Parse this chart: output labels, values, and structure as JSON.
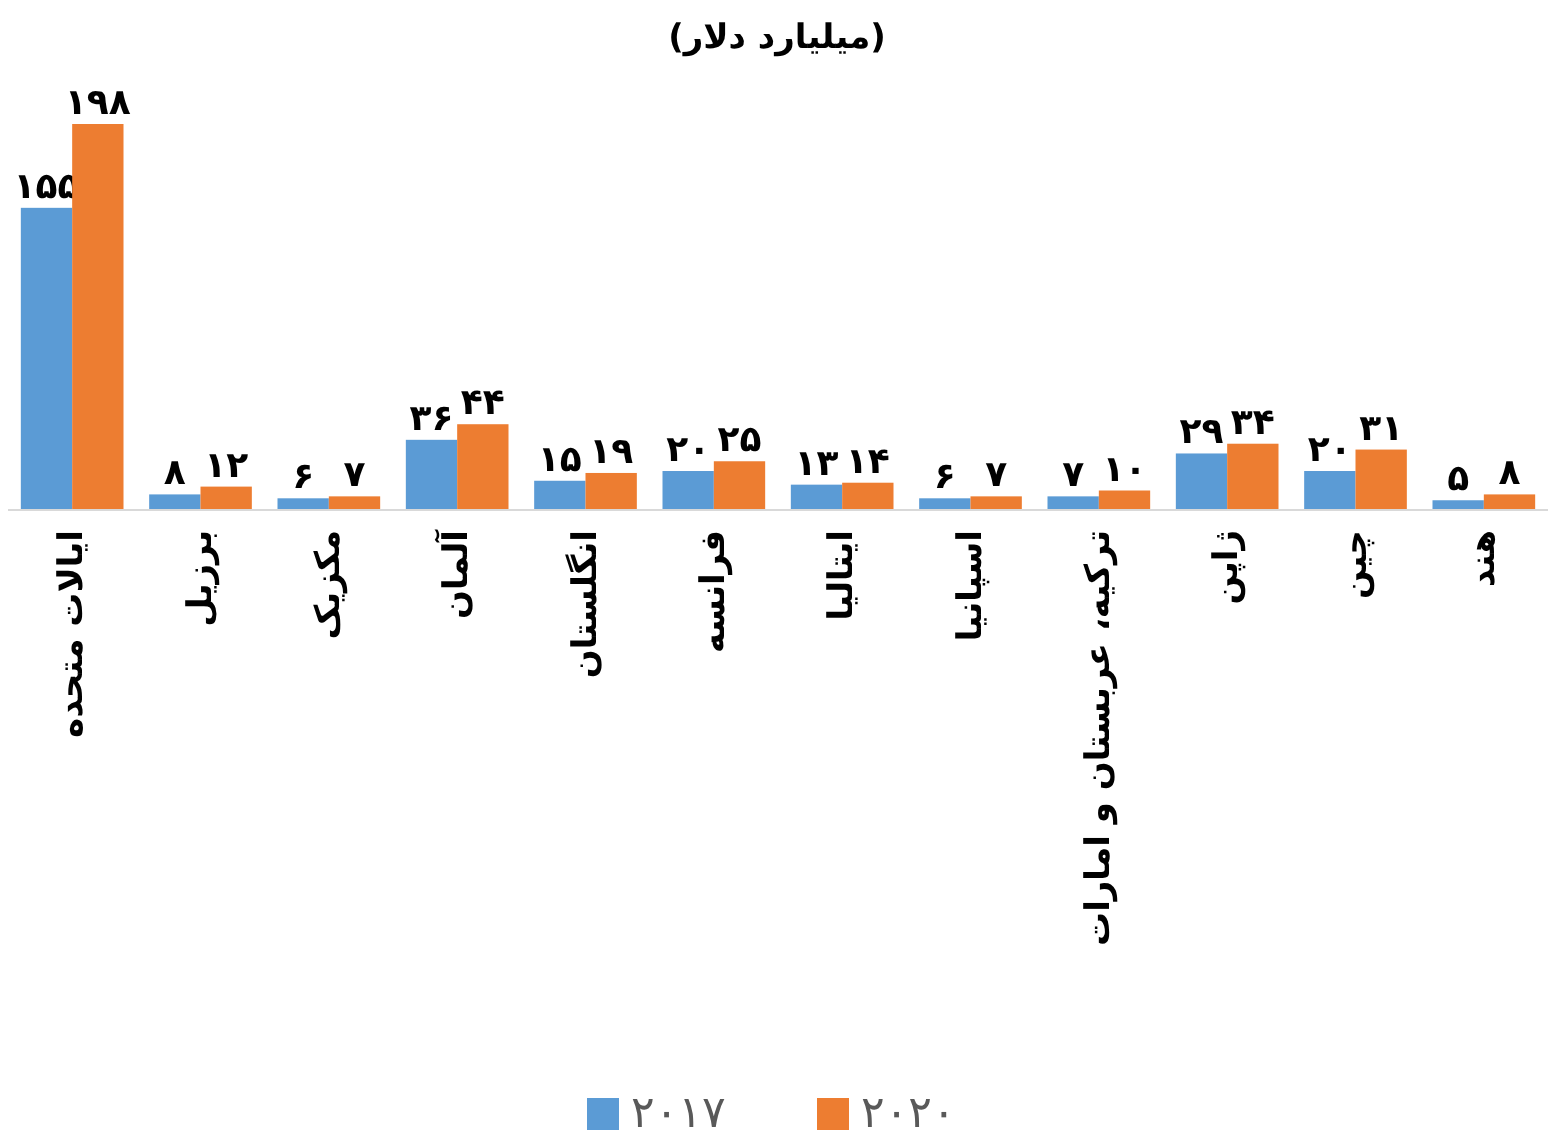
{
  "chart_data": {
    "type": "bar",
    "title": "(میلیارد دلار)",
    "categories": [
      "ایالات متحده",
      "برزیل",
      "مکزیک",
      "آلمان",
      "انگلستان",
      "فرانسه",
      "ایتالیا",
      "اسپانیا",
      "ترکیه، عربستان و امارات",
      "ژاپن",
      "چین",
      "هند"
    ],
    "series": [
      {
        "name": "۲۰۱۷",
        "color": "#5b9bd5",
        "values": [
          155,
          8,
          6,
          36,
          15,
          20,
          13,
          6,
          7,
          29,
          20,
          5
        ],
        "value_labels": [
          "۱۵۵",
          "۸",
          "۶",
          "۳۶",
          "۱۵",
          "۲۰",
          "۱۳",
          "۶",
          "۷",
          "۲۹",
          "۲۰",
          "۵"
        ]
      },
      {
        "name": "۲۰۲۰",
        "color": "#ed7d31",
        "values": [
          198,
          12,
          7,
          44,
          19,
          25,
          14,
          7,
          10,
          34,
          31,
          8
        ],
        "value_labels": [
          "۱۹۸",
          "۱۲",
          "۷",
          "۴۴",
          "۱۹",
          "۲۵",
          "۱۴",
          "۷",
          "۱۰",
          "۳۴",
          "۳۱",
          "۸"
        ]
      }
    ],
    "legend": "bottom"
  }
}
